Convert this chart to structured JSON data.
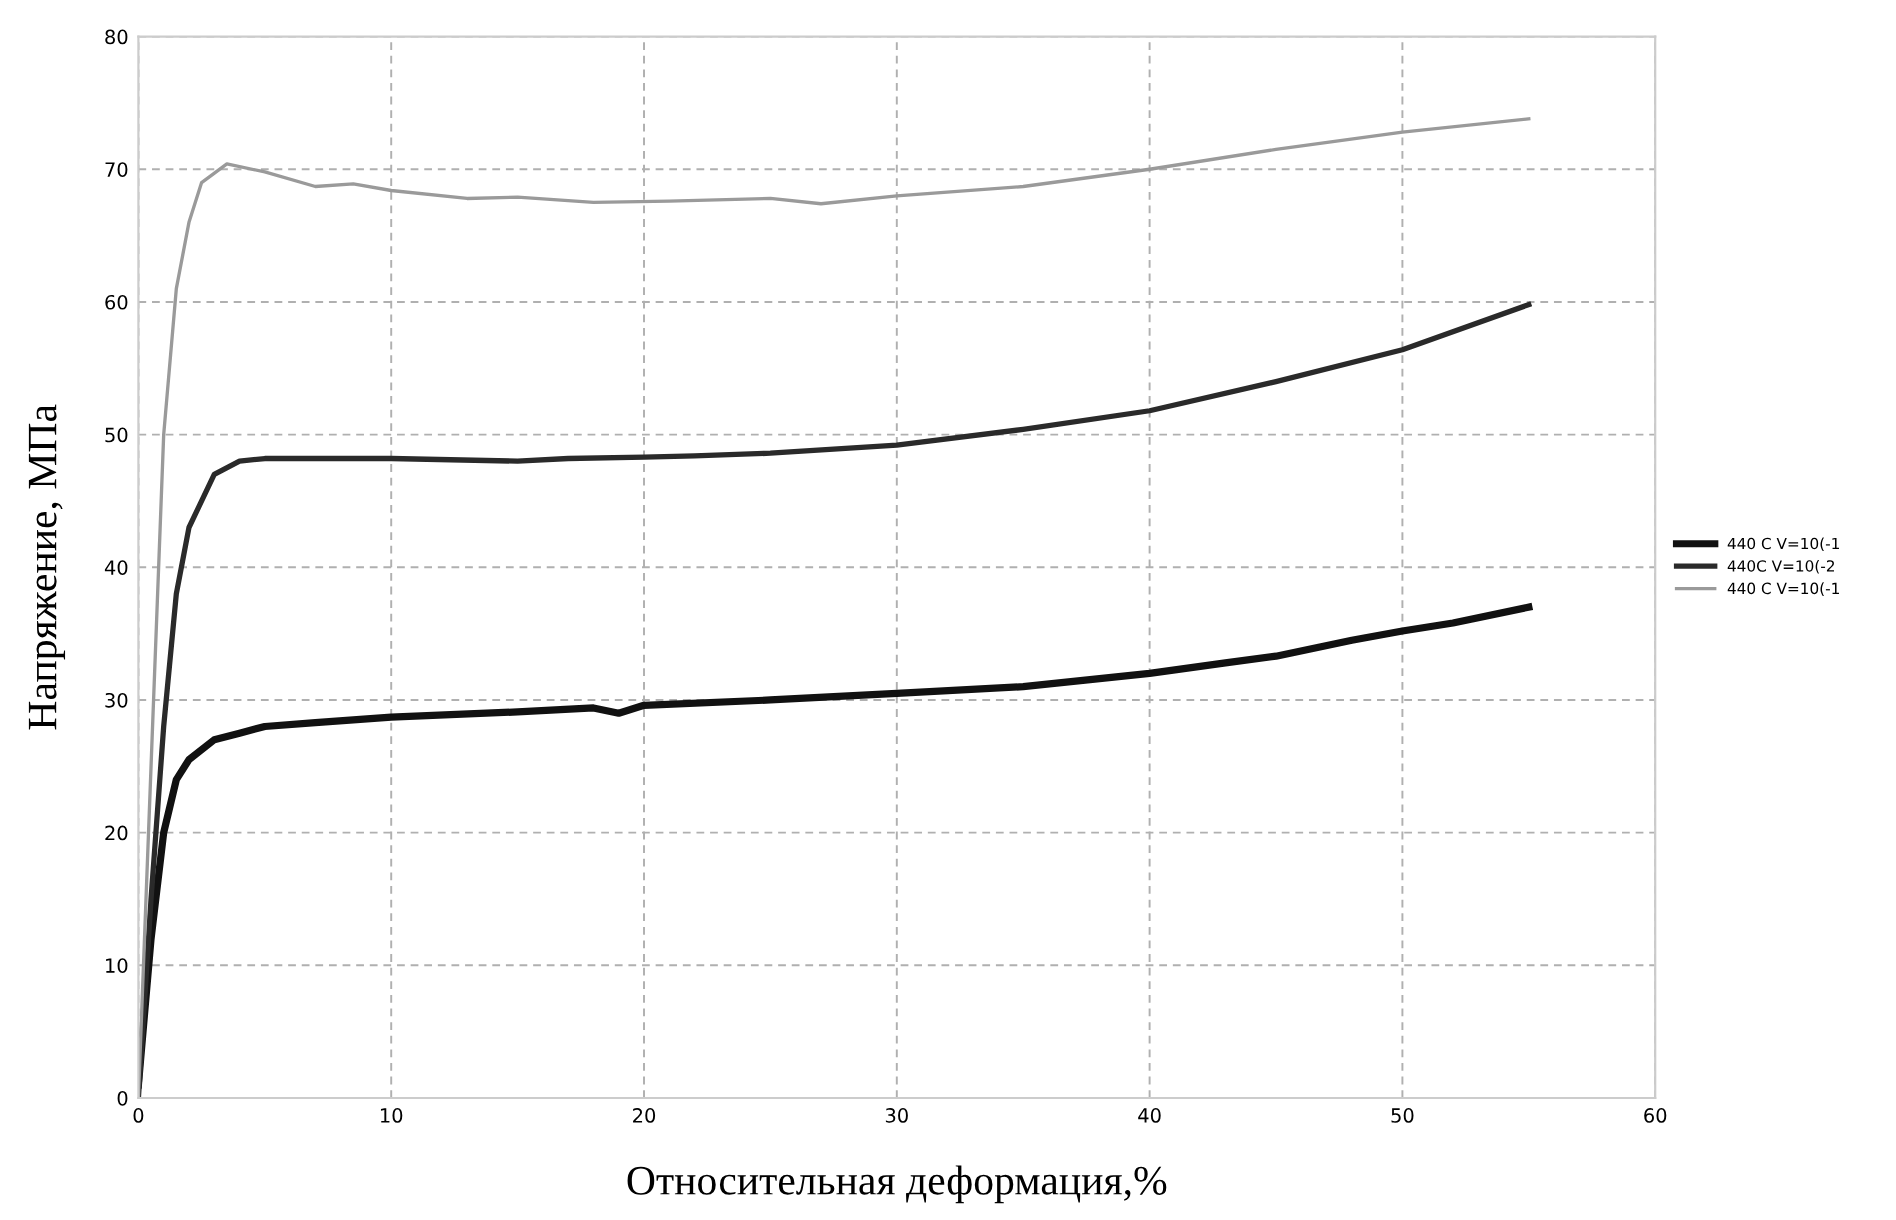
{
  "chart_data": {
    "type": "line",
    "xlabel": "Относительная деформация,%",
    "ylabel": "Напряжение, МПа",
    "xlim": [
      0,
      60
    ],
    "xticks": [
      0,
      10,
      20,
      30,
      40,
      50,
      60
    ],
    "ylim": [
      0,
      80
    ],
    "yticks": [
      0,
      10,
      20,
      30,
      40,
      50,
      60,
      70,
      80
    ],
    "grid": true,
    "legend": "right",
    "marker": "none",
    "line_style": "solid",
    "series": [
      {
        "name": "440 C V=10(-1",
        "color": "#111111",
        "x": [
          0,
          0.5,
          1,
          1.5,
          2,
          3,
          4,
          5,
          7,
          10,
          15,
          18,
          19,
          20,
          25,
          30,
          35,
          40,
          43,
          45,
          48,
          50,
          52,
          55
        ],
        "values": [
          1,
          12,
          20,
          24,
          25.5,
          27,
          27.5,
          28,
          28.3,
          28.7,
          29.1,
          29.4,
          29,
          29.6,
          30,
          30.5,
          31,
          32,
          32.8,
          33.3,
          34.5,
          35.2,
          35.8,
          37
        ]
      },
      {
        "name": "440C V=10(-2",
        "color": "#2a2a2a",
        "x": [
          0,
          0.5,
          1,
          1.5,
          2,
          3,
          4,
          5,
          10,
          15,
          17,
          20,
          22,
          25,
          30,
          35,
          40,
          45,
          50,
          55
        ],
        "values": [
          0,
          15,
          28,
          38,
          43,
          47,
          48,
          48.2,
          48.2,
          48,
          48.2,
          48.3,
          48.4,
          48.6,
          49.2,
          50.4,
          51.8,
          54,
          56.4,
          59.8
        ]
      },
      {
        "name": "440 C V=10(-1",
        "color": "#9a9a9a",
        "x": [
          0,
          0.5,
          1,
          1.5,
          2,
          2.5,
          3.5,
          5,
          7,
          8.5,
          10,
          13,
          15,
          18,
          21,
          25,
          27,
          30,
          35,
          40,
          45,
          50,
          55
        ],
        "values": [
          0,
          25,
          50,
          61,
          66,
          69,
          70.4,
          69.8,
          68.7,
          68.9,
          68.4,
          67.8,
          67.9,
          67.5,
          67.6,
          67.8,
          67.4,
          68,
          68.7,
          70,
          71.5,
          72.8,
          73.8
        ]
      }
    ]
  }
}
